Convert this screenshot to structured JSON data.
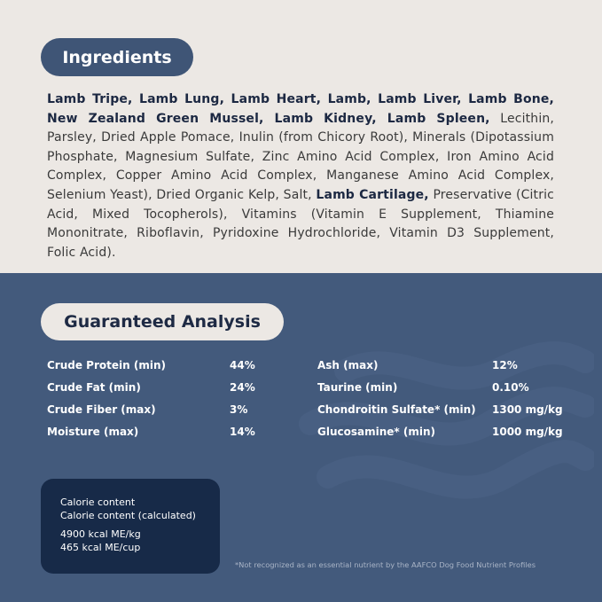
{
  "ingredients": {
    "title": "Ingredients",
    "segments": [
      {
        "text": "Lamb Tripe, Lamb Lung, Lamb Heart, Lamb, Lamb Liver, Lamb Bone, New Zealand Green Mussel, Lamb Kidney, Lamb Spleen,",
        "bold": true
      },
      {
        "text": "Lecithin, Parsley, Dried Apple Pomace, Inulin (from Chicory Root), Minerals (Dipotassium Phosphate, Magnesium Sulfate, Zinc Amino Acid Complex, Iron Amino Acid Complex, Copper Amino Acid Complex, Manganese Amino Acid Complex, Selenium Yeast), Dried Organic Kelp, Salt,",
        "bold": false
      },
      {
        "text": "Lamb Cartilage,",
        "bold": true
      },
      {
        "text": "Preservative (Citric Acid, Mixed Tocopherols), Vitamins (Vitamin E Supplement, Thiamine Mononitrate, Riboflavin, Pyridoxine Hydrochloride, Vitamin D3 Supplement, Folic Acid).",
        "bold": false
      }
    ]
  },
  "analysis": {
    "title": "Guaranteed Analysis",
    "rows": [
      [
        "Crude Protein (min)",
        "44%",
        "Ash (max)",
        "12%"
      ],
      [
        "Crude Fat (min)",
        "24%",
        "Taurine (min)",
        "0.10%"
      ],
      [
        "Crude Fiber (max)",
        "3%",
        "Chondroitin Sulfate* (min)",
        "1300 mg/kg"
      ],
      [
        "Moisture (max)",
        "14%",
        "Glucosamine* (min)",
        "1000 mg/kg"
      ]
    ]
  },
  "calorie": {
    "lines": [
      "Calorie content",
      "Calorie content (calculated)",
      "4900 kcal ME/kg",
      "465 kcal ME/cup"
    ]
  },
  "footnote": "*Not recognized as an essential nutrient by the AAFCO Dog Food Nutrient Profiles"
}
